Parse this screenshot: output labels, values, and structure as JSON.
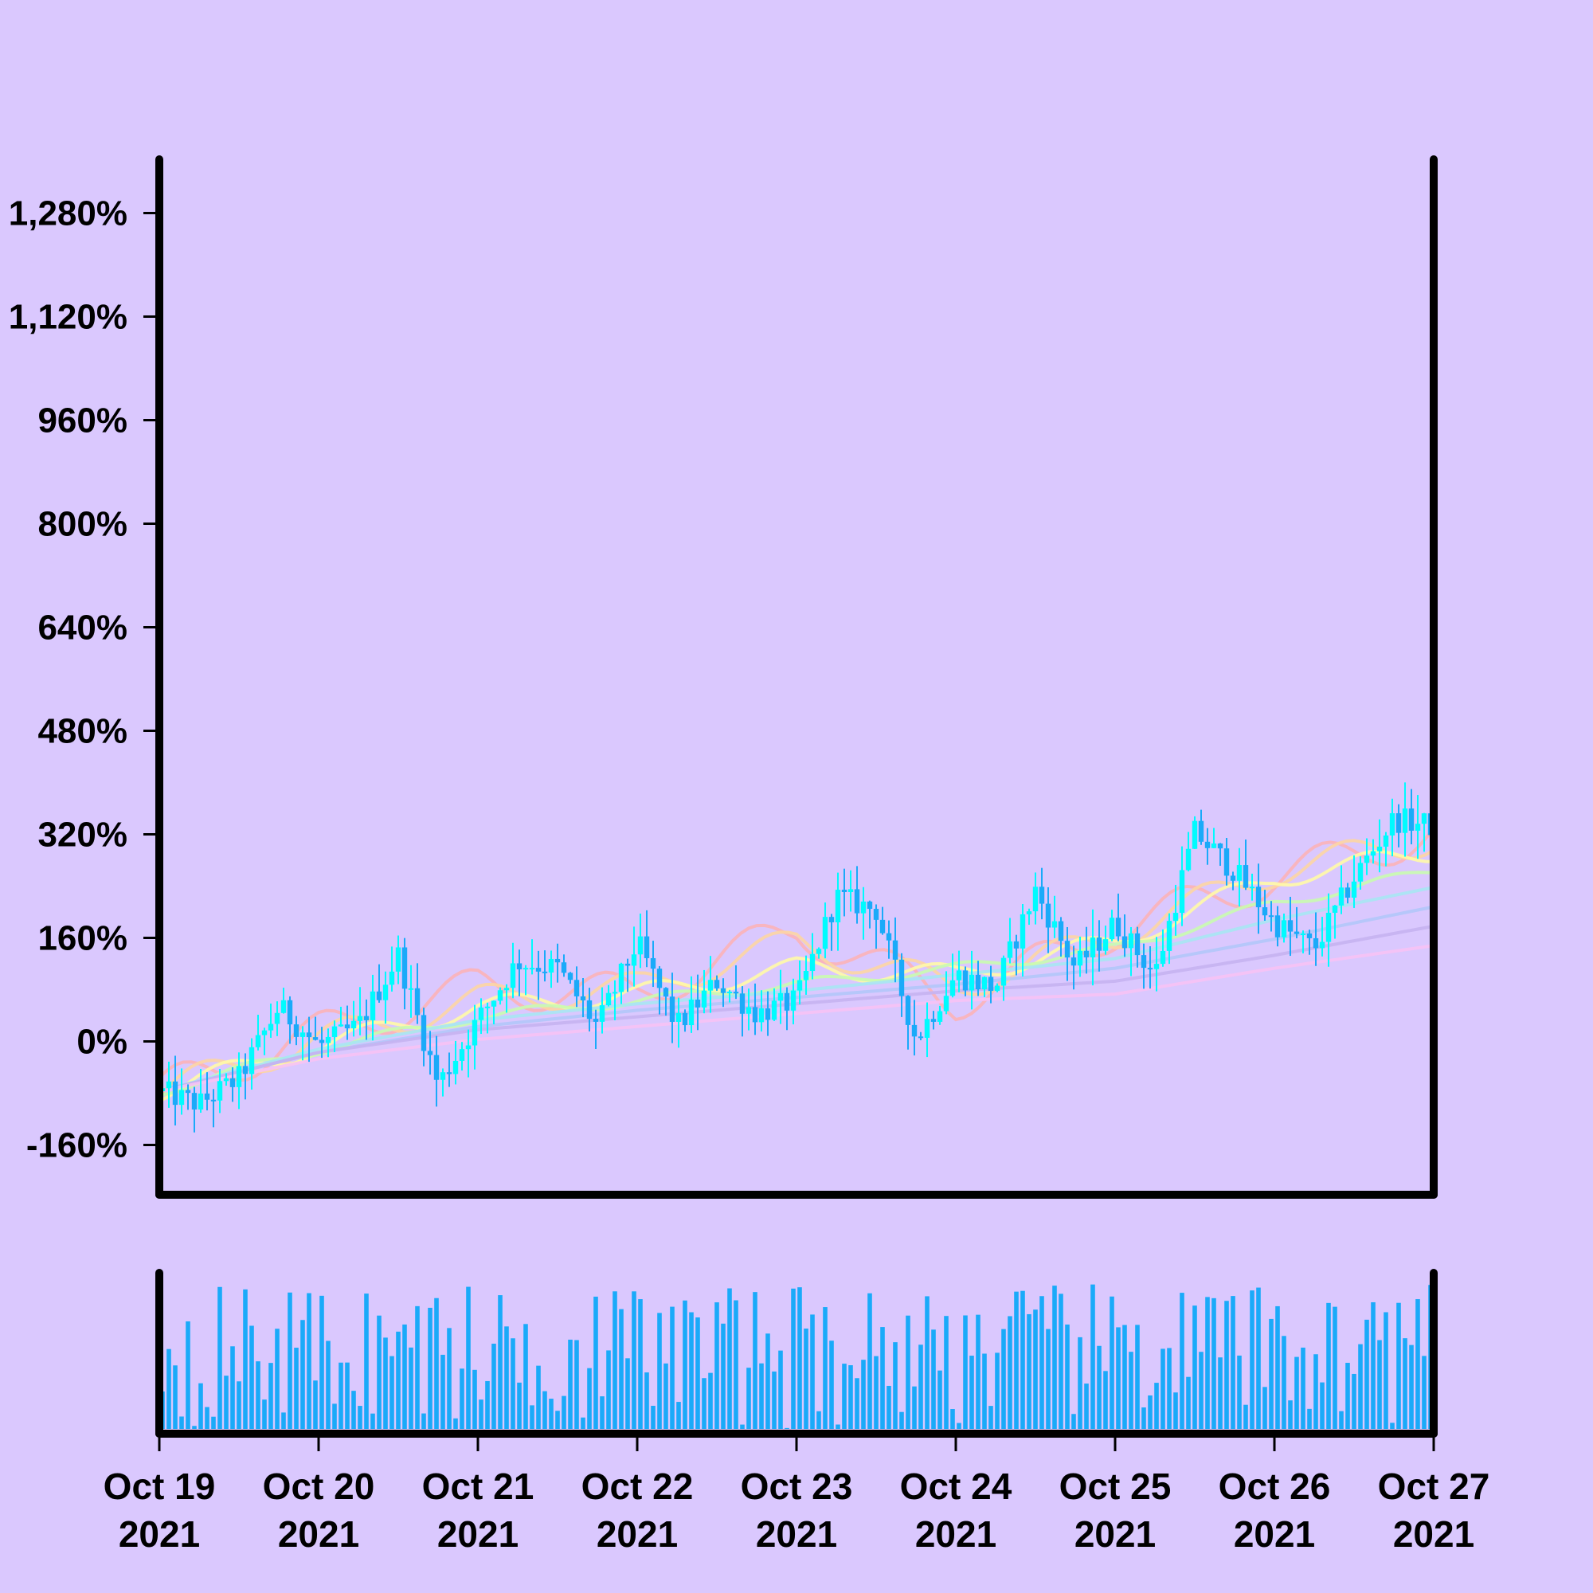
{
  "colors": {
    "background": "#dac8fe",
    "axis": "#000000",
    "candle_up": "#00fbfe",
    "candle_down": "#1aaaf9",
    "volume": "#1aaaf9",
    "ma_lines": [
      "#fbb3b8",
      "#fcd5a4",
      "#fffaa7",
      "#c9fbb0",
      "#a7e6f3",
      "#b1c6f9",
      "#c5b2f1",
      "#f6c2f5"
    ]
  },
  "chart_data": {
    "type": "candlestick",
    "y_unit": "%",
    "ylim": [
      -200,
      1400
    ],
    "y_ticks": [
      -160,
      0,
      160,
      320,
      480,
      640,
      800,
      960,
      1120,
      1280
    ],
    "y_tick_labels": [
      "-160%",
      "0%",
      "160%",
      "320%",
      "480%",
      "640%",
      "800%",
      "960%",
      "1,120%",
      "1,280%"
    ],
    "x_range": [
      "2021-10-19",
      "2021-10-27"
    ],
    "x_tick_labels": [
      {
        "month_day": "Oct 19",
        "year": "2021"
      },
      {
        "month_day": "Oct 20",
        "year": "2021"
      },
      {
        "month_day": "Oct 21",
        "year": "2021"
      },
      {
        "month_day": "Oct 22",
        "year": "2021"
      },
      {
        "month_day": "Oct 23",
        "year": "2021"
      },
      {
        "month_day": "Oct 24",
        "year": "2021"
      },
      {
        "month_day": "Oct 25",
        "year": "2021"
      },
      {
        "month_day": "Oct 26",
        "year": "2021"
      },
      {
        "month_day": "Oct 27",
        "year": "2021"
      }
    ],
    "close_profile": [
      {
        "x": "2021-10-19 00:00",
        "y": -40
      },
      {
        "x": "2021-10-19 06:00",
        "y": -60
      },
      {
        "x": "2021-10-19 12:00",
        "y": -20
      },
      {
        "x": "2021-10-19 18:00",
        "y": 90
      },
      {
        "x": "2021-10-20 00:00",
        "y": 30
      },
      {
        "x": "2021-10-20 06:00",
        "y": 60
      },
      {
        "x": "2021-10-20 12:00",
        "y": 170
      },
      {
        "x": "2021-10-20 18:00",
        "y": -30
      },
      {
        "x": "2021-10-21 00:00",
        "y": 70
      },
      {
        "x": "2021-10-21 06:00",
        "y": 160
      },
      {
        "x": "2021-10-21 12:00",
        "y": 150
      },
      {
        "x": "2021-10-21 18:00",
        "y": 60
      },
      {
        "x": "2021-10-22 00:00",
        "y": 190
      },
      {
        "x": "2021-10-22 06:00",
        "y": 60
      },
      {
        "x": "2021-10-22 12:00",
        "y": 130
      },
      {
        "x": "2021-10-22 18:00",
        "y": 80
      },
      {
        "x": "2021-10-23 00:00",
        "y": 100
      },
      {
        "x": "2021-10-23 06:00",
        "y": 260
      },
      {
        "x": "2021-10-23 12:00",
        "y": 240
      },
      {
        "x": "2021-10-23 18:00",
        "y": 40
      },
      {
        "x": "2021-10-24 00:00",
        "y": 140
      },
      {
        "x": "2021-10-24 06:00",
        "y": 120
      },
      {
        "x": "2021-10-24 12:00",
        "y": 270
      },
      {
        "x": "2021-10-24 18:00",
        "y": 150
      },
      {
        "x": "2021-10-25 00:00",
        "y": 220
      },
      {
        "x": "2021-10-25 06:00",
        "y": 140
      },
      {
        "x": "2021-10-25 12:00",
        "y": 360
      },
      {
        "x": "2021-10-25 18:00",
        "y": 300
      },
      {
        "x": "2021-10-26 00:00",
        "y": 220
      },
      {
        "x": "2021-10-26 06:00",
        "y": 180
      },
      {
        "x": "2021-10-26 12:00",
        "y": 290
      },
      {
        "x": "2021-10-26 18:00",
        "y": 380
      },
      {
        "x": "2021-10-27 00:00",
        "y": 370
      }
    ],
    "moving_averages": [
      {
        "points": [
          {
            "x": "2021-10-19 00:00",
            "y": -40
          },
          {
            "x": "2021-10-20 00:00",
            "y": 10
          },
          {
            "x": "2021-10-21 00:00",
            "y": 40
          },
          {
            "x": "2021-10-22 00:00",
            "y": 60
          },
          {
            "x": "2021-10-23 00:00",
            "y": 80
          },
          {
            "x": "2021-10-24 00:00",
            "y": 100
          },
          {
            "x": "2021-10-25 00:00",
            "y": 110
          },
          {
            "x": "2021-10-26 00:00",
            "y": 150
          },
          {
            "x": "2021-10-27 00:00",
            "y": 185
          }
        ]
      },
      {
        "points": [
          {
            "x": "2021-10-19 00:00",
            "y": -40
          },
          {
            "x": "2021-10-20 00:00",
            "y": 20
          },
          {
            "x": "2021-10-21 00:00",
            "y": 55
          },
          {
            "x": "2021-10-22 00:00",
            "y": 75
          },
          {
            "x": "2021-10-23 00:00",
            "y": 95
          },
          {
            "x": "2021-10-24 00:00",
            "y": 115
          },
          {
            "x": "2021-10-25 00:00",
            "y": 130
          },
          {
            "x": "2021-10-26 00:00",
            "y": 170
          },
          {
            "x": "2021-10-27 00:00",
            "y": 215
          }
        ]
      },
      {
        "points": [
          {
            "x": "2021-10-19 00:00",
            "y": -40
          },
          {
            "x": "2021-10-20 00:00",
            "y": 20
          },
          {
            "x": "2021-10-21 00:00",
            "y": 60
          },
          {
            "x": "2021-10-22 00:00",
            "y": 85
          },
          {
            "x": "2021-10-23 00:00",
            "y": 105
          },
          {
            "x": "2021-10-24 00:00",
            "y": 125
          },
          {
            "x": "2021-10-25 00:00",
            "y": 150
          },
          {
            "x": "2021-10-26 00:00",
            "y": 195
          },
          {
            "x": "2021-10-27 00:00",
            "y": 245
          }
        ]
      },
      {
        "points": [
          {
            "x": "2021-10-19 00:00",
            "y": -40
          },
          {
            "x": "2021-10-20 00:00",
            "y": 25
          },
          {
            "x": "2021-10-21 00:00",
            "y": 70
          },
          {
            "x": "2021-10-22 00:00",
            "y": 95
          },
          {
            "x": "2021-10-23 00:00",
            "y": 115
          },
          {
            "x": "2021-10-24 00:00",
            "y": 140
          },
          {
            "x": "2021-10-25 00:00",
            "y": 165
          },
          {
            "x": "2021-10-26 00:00",
            "y": 225
          },
          {
            "x": "2021-10-27 00:00",
            "y": 275
          }
        ]
      },
      {
        "points": [
          {
            "x": "2021-10-19 00:00",
            "y": -40
          },
          {
            "x": "2021-10-20 00:00",
            "y": 25
          },
          {
            "x": "2021-10-21 00:00",
            "y": 75
          },
          {
            "x": "2021-10-22 00:00",
            "y": 100
          },
          {
            "x": "2021-10-23 00:00",
            "y": 125
          },
          {
            "x": "2021-10-24 00:00",
            "y": 150
          },
          {
            "x": "2021-10-25 00:00",
            "y": 180
          },
          {
            "x": "2021-10-26 00:00",
            "y": 250
          },
          {
            "x": "2021-10-27 00:00",
            "y": 300
          }
        ]
      },
      {
        "points": [
          {
            "x": "2021-10-19 00:00",
            "y": -40
          },
          {
            "x": "2021-10-20 00:00",
            "y": 30
          },
          {
            "x": "2021-10-21 00:00",
            "y": 90
          },
          {
            "x": "2021-10-22 00:00",
            "y": 110
          },
          {
            "x": "2021-10-23 00:00",
            "y": 150
          },
          {
            "x": "2021-10-24 00:00",
            "y": 140
          },
          {
            "x": "2021-10-25 00:00",
            "y": 190
          },
          {
            "x": "2021-10-26 00:00",
            "y": 290
          },
          {
            "x": "2021-10-27 00:00",
            "y": 330
          }
        ]
      },
      {
        "points": [
          {
            "x": "2021-10-19 00:00",
            "y": -40
          },
          {
            "x": "2021-10-20 00:00",
            "y": 40
          },
          {
            "x": "2021-10-21 00:00",
            "y": 100
          },
          {
            "x": "2021-10-22 00:00",
            "y": 120
          },
          {
            "x": "2021-10-23 00:00",
            "y": 190
          },
          {
            "x": "2021-10-24 00:00",
            "y": 120
          },
          {
            "x": "2021-10-25 00:00",
            "y": 200
          },
          {
            "x": "2021-10-26 00:00",
            "y": 300
          },
          {
            "x": "2021-10-27 00:00",
            "y": 350
          }
        ]
      },
      {
        "points": [
          {
            "x": "2021-10-19 00:00",
            "y": -40
          },
          {
            "x": "2021-10-20 00:00",
            "y": 50
          },
          {
            "x": "2021-10-21 00:00",
            "y": 120
          },
          {
            "x": "2021-10-22 00:00",
            "y": 110
          },
          {
            "x": "2021-10-23 00:00",
            "y": 210
          },
          {
            "x": "2021-10-24 00:00",
            "y": 100
          },
          {
            "x": "2021-10-25 00:00",
            "y": 210
          },
          {
            "x": "2021-10-26 00:00",
            "y": 290
          },
          {
            "x": "2021-10-27 00:00",
            "y": 360
          }
        ]
      }
    ],
    "volume": {
      "approx_bar_count": 200,
      "relative_range": [
        0.0,
        1.0
      ]
    },
    "grid": false,
    "legend": false
  }
}
